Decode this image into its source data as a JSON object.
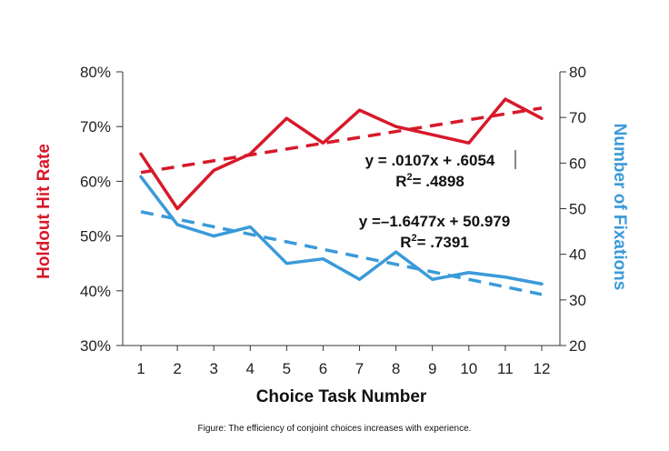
{
  "chart_data": {
    "type": "line",
    "x": [
      1,
      2,
      3,
      4,
      5,
      6,
      7,
      8,
      9,
      10,
      11,
      12
    ],
    "xlabel": "Choice Task Number",
    "ylabel_left": "Holdout Hit Rate",
    "ylabel_right": "Number of Fixations",
    "ylim_left": [
      0.3,
      0.8
    ],
    "ylim_right": [
      20,
      80
    ],
    "yticks_left": [
      "30%",
      "40%",
      "50%",
      "60%",
      "70%",
      "80%"
    ],
    "yticks_right": [
      "20",
      "30",
      "40",
      "50",
      "60",
      "70",
      "80"
    ],
    "xticks": [
      "1",
      "2",
      "3",
      "4",
      "5",
      "6",
      "7",
      "8",
      "9",
      "10",
      "11",
      "12"
    ],
    "grid": false,
    "series": [
      {
        "axis": "left",
        "color": "#d7192a",
        "values": [
          0.65,
          0.55,
          0.62,
          0.65,
          0.715,
          0.67,
          0.73,
          0.7,
          0.685,
          0.67,
          0.75,
          0.715
        ],
        "trend": {
          "slope": 0.0107,
          "intercept": 0.6054
        }
      },
      {
        "axis": "right",
        "color": "#3a9ad9",
        "values": [
          57,
          46.5,
          44,
          46,
          38,
          39,
          34.5,
          40.5,
          34.5,
          36,
          35,
          33.5
        ],
        "trend": {
          "slope": -1.6477,
          "intercept": 50.979
        }
      }
    ],
    "annotations": [
      {
        "eq": "y = .0107x + .6054",
        "r2_prefix": "R",
        "r2_sup": "2",
        "r2_rest": "= .4898"
      },
      {
        "eq": "y =–1.6477x + 50.979",
        "r2_prefix": "R",
        "r2_sup": "2",
        "r2_rest": "= .7391"
      }
    ]
  },
  "caption": "Figure: The efficiency of conjoint choices increases with experience.",
  "colors": {
    "red": "#d7192a",
    "blue": "#3a9ad9",
    "axis": "#333333"
  }
}
